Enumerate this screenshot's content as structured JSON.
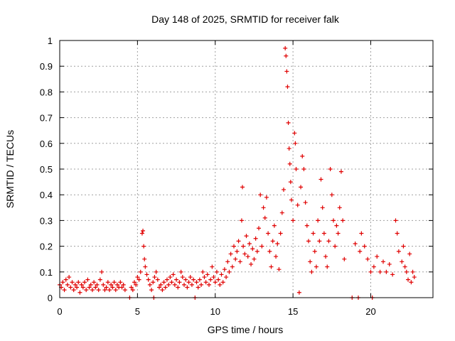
{
  "chart_data": {
    "type": "scatter",
    "title": "Day 148 of 2025, SRMTID for receiver falk",
    "xlabel": "GPS time / hours",
    "ylabel": "SRMTID / TECUs",
    "xlim": [
      0,
      24
    ],
    "ylim": [
      0,
      1
    ],
    "xticks": [
      0,
      5,
      10,
      15,
      20
    ],
    "yticks": [
      0,
      0.1,
      0.2,
      0.3,
      0.4,
      0.5,
      0.6,
      0.7,
      0.8,
      0.9,
      1
    ],
    "ytick_labels": [
      "0",
      "0.1",
      "0.2",
      "0.3",
      "0.4",
      "0.5",
      "0.6",
      "0.7",
      "0.8",
      "0.9",
      "1"
    ],
    "grid": true,
    "marker": "+",
    "color": "#e00000",
    "series": [
      {
        "name": "SRMTID",
        "points": [
          [
            0.0,
            0.05
          ],
          [
            0.1,
            0.04
          ],
          [
            0.2,
            0.06
          ],
          [
            0.3,
            0.03
          ],
          [
            0.4,
            0.07
          ],
          [
            0.5,
            0.05
          ],
          [
            0.6,
            0.08
          ],
          [
            0.7,
            0.04
          ],
          [
            0.8,
            0.06
          ],
          [
            0.9,
            0.03
          ],
          [
            1.0,
            0.05
          ],
          [
            1.1,
            0.04
          ],
          [
            1.2,
            0.06
          ],
          [
            1.3,
            0.02
          ],
          [
            1.4,
            0.05
          ],
          [
            1.5,
            0.04
          ],
          [
            1.6,
            0.06
          ],
          [
            1.7,
            0.03
          ],
          [
            1.8,
            0.07
          ],
          [
            1.9,
            0.04
          ],
          [
            2.0,
            0.05
          ],
          [
            2.1,
            0.03
          ],
          [
            2.2,
            0.06
          ],
          [
            2.3,
            0.04
          ],
          [
            2.4,
            0.05
          ],
          [
            2.5,
            0.03
          ],
          [
            2.6,
            0.07
          ],
          [
            2.7,
            0.1
          ],
          [
            2.8,
            0.05
          ],
          [
            2.9,
            0.03
          ],
          [
            3.0,
            0.04
          ],
          [
            3.1,
            0.06
          ],
          [
            3.2,
            0.03
          ],
          [
            3.3,
            0.05
          ],
          [
            3.4,
            0.04
          ],
          [
            3.5,
            0.06
          ],
          [
            3.6,
            0.03
          ],
          [
            3.7,
            0.05
          ],
          [
            3.8,
            0.04
          ],
          [
            3.9,
            0.06
          ],
          [
            4.0,
            0.04
          ],
          [
            4.1,
            0.05
          ],
          [
            4.2,
            0.03
          ],
          [
            4.5,
            0.0
          ],
          [
            4.6,
            0.04
          ],
          [
            4.7,
            0.03
          ],
          [
            4.8,
            0.06
          ],
          [
            4.9,
            0.05
          ],
          [
            5.0,
            0.08
          ],
          [
            5.1,
            0.07
          ],
          [
            5.2,
            0.1
          ],
          [
            5.3,
            0.25
          ],
          [
            5.35,
            0.26
          ],
          [
            5.4,
            0.2
          ],
          [
            5.45,
            0.15
          ],
          [
            5.5,
            0.12
          ],
          [
            5.6,
            0.09
          ],
          [
            5.7,
            0.07
          ],
          [
            5.8,
            0.05
          ],
          [
            5.9,
            0.03
          ],
          [
            6.0,
            0.06
          ],
          [
            6.05,
            0.0
          ],
          [
            6.1,
            0.08
          ],
          [
            6.2,
            0.1
          ],
          [
            6.3,
            0.07
          ],
          [
            6.4,
            0.04
          ],
          [
            6.5,
            0.05
          ],
          [
            6.6,
            0.03
          ],
          [
            6.7,
            0.06
          ],
          [
            6.8,
            0.04
          ],
          [
            6.9,
            0.07
          ],
          [
            7.0,
            0.05
          ],
          [
            7.1,
            0.08
          ],
          [
            7.2,
            0.06
          ],
          [
            7.3,
            0.09
          ],
          [
            7.4,
            0.05
          ],
          [
            7.5,
            0.07
          ],
          [
            7.6,
            0.04
          ],
          [
            7.7,
            0.06
          ],
          [
            7.8,
            0.1
          ],
          [
            7.9,
            0.08
          ],
          [
            8.0,
            0.05
          ],
          [
            8.1,
            0.07
          ],
          [
            8.2,
            0.04
          ],
          [
            8.3,
            0.06
          ],
          [
            8.4,
            0.08
          ],
          [
            8.5,
            0.05
          ],
          [
            8.6,
            0.07
          ],
          [
            8.7,
            0.0
          ],
          [
            8.8,
            0.06
          ],
          [
            8.9,
            0.04
          ],
          [
            9.0,
            0.07
          ],
          [
            9.1,
            0.05
          ],
          [
            9.2,
            0.1
          ],
          [
            9.3,
            0.08
          ],
          [
            9.4,
            0.06
          ],
          [
            9.5,
            0.09
          ],
          [
            9.6,
            0.05
          ],
          [
            9.7,
            0.07
          ],
          [
            9.8,
            0.12
          ],
          [
            9.9,
            0.08
          ],
          [
            10.0,
            0.06
          ],
          [
            10.1,
            0.1
          ],
          [
            10.2,
            0.07
          ],
          [
            10.3,
            0.05
          ],
          [
            10.4,
            0.09
          ],
          [
            10.5,
            0.06
          ],
          [
            10.6,
            0.11
          ],
          [
            10.7,
            0.08
          ],
          [
            10.8,
            0.14
          ],
          [
            10.9,
            0.1
          ],
          [
            11.0,
            0.17
          ],
          [
            11.1,
            0.12
          ],
          [
            11.2,
            0.2
          ],
          [
            11.3,
            0.15
          ],
          [
            11.4,
            0.18
          ],
          [
            11.5,
            0.22
          ],
          [
            11.6,
            0.14
          ],
          [
            11.7,
            0.3
          ],
          [
            11.75,
            0.43
          ],
          [
            11.8,
            0.2
          ],
          [
            11.9,
            0.17
          ],
          [
            12.0,
            0.24
          ],
          [
            12.1,
            0.16
          ],
          [
            12.2,
            0.21
          ],
          [
            12.3,
            0.13
          ],
          [
            12.4,
            0.19
          ],
          [
            12.5,
            0.15
          ],
          [
            12.6,
            0.23
          ],
          [
            12.7,
            0.18
          ],
          [
            12.8,
            0.27
          ],
          [
            12.9,
            0.4
          ],
          [
            13.0,
            0.2
          ],
          [
            13.1,
            0.35
          ],
          [
            13.2,
            0.31
          ],
          [
            13.3,
            0.39
          ],
          [
            13.4,
            0.25
          ],
          [
            13.5,
            0.18
          ],
          [
            13.6,
            0.12
          ],
          [
            13.7,
            0.22
          ],
          [
            13.8,
            0.28
          ],
          [
            13.9,
            0.16
          ],
          [
            14.0,
            0.21
          ],
          [
            14.1,
            0.11
          ],
          [
            14.2,
            0.25
          ],
          [
            14.3,
            0.33
          ],
          [
            14.4,
            0.42
          ],
          [
            14.5,
            0.97
          ],
          [
            14.55,
            0.94
          ],
          [
            14.6,
            0.88
          ],
          [
            14.65,
            0.82
          ],
          [
            14.7,
            0.68
          ],
          [
            14.75,
            0.58
          ],
          [
            14.8,
            0.52
          ],
          [
            14.85,
            0.45
          ],
          [
            14.9,
            0.38
          ],
          [
            15.0,
            0.3
          ],
          [
            15.1,
            0.64
          ],
          [
            15.15,
            0.6
          ],
          [
            15.2,
            0.5
          ],
          [
            15.3,
            0.36
          ],
          [
            15.4,
            0.02
          ],
          [
            15.5,
            0.43
          ],
          [
            15.6,
            0.55
          ],
          [
            15.7,
            0.5
          ],
          [
            15.8,
            0.37
          ],
          [
            15.9,
            0.28
          ],
          [
            16.0,
            0.22
          ],
          [
            16.1,
            0.14
          ],
          [
            16.2,
            0.1
          ],
          [
            16.3,
            0.25
          ],
          [
            16.4,
            0.18
          ],
          [
            16.5,
            0.12
          ],
          [
            16.6,
            0.3
          ],
          [
            16.7,
            0.22
          ],
          [
            16.8,
            0.46
          ],
          [
            16.9,
            0.35
          ],
          [
            17.0,
            0.25
          ],
          [
            17.1,
            0.16
          ],
          [
            17.2,
            0.12
          ],
          [
            17.3,
            0.22
          ],
          [
            17.4,
            0.5
          ],
          [
            17.5,
            0.4
          ],
          [
            17.6,
            0.3
          ],
          [
            17.7,
            0.2
          ],
          [
            17.8,
            0.28
          ],
          [
            17.9,
            0.25
          ],
          [
            18.0,
            0.35
          ],
          [
            18.1,
            0.49
          ],
          [
            18.2,
            0.3
          ],
          [
            18.3,
            0.15
          ],
          [
            18.8,
            0.0
          ],
          [
            19.0,
            0.21
          ],
          [
            19.2,
            0.0
          ],
          [
            19.3,
            0.18
          ],
          [
            19.4,
            0.25
          ],
          [
            19.6,
            0.2
          ],
          [
            19.8,
            0.15
          ],
          [
            20.0,
            0.1
          ],
          [
            20.1,
            0.0
          ],
          [
            20.2,
            0.12
          ],
          [
            20.4,
            0.16
          ],
          [
            20.6,
            0.1
          ],
          [
            20.8,
            0.14
          ],
          [
            21.0,
            0.1
          ],
          [
            21.2,
            0.13
          ],
          [
            21.4,
            0.09
          ],
          [
            21.6,
            0.3
          ],
          [
            21.7,
            0.25
          ],
          [
            21.8,
            0.18
          ],
          [
            22.0,
            0.14
          ],
          [
            22.1,
            0.2
          ],
          [
            22.2,
            0.12
          ],
          [
            22.3,
            0.1
          ],
          [
            22.4,
            0.07
          ],
          [
            22.5,
            0.17
          ],
          [
            22.6,
            0.06
          ],
          [
            22.7,
            0.1
          ],
          [
            22.8,
            0.08
          ]
        ]
      }
    ]
  }
}
